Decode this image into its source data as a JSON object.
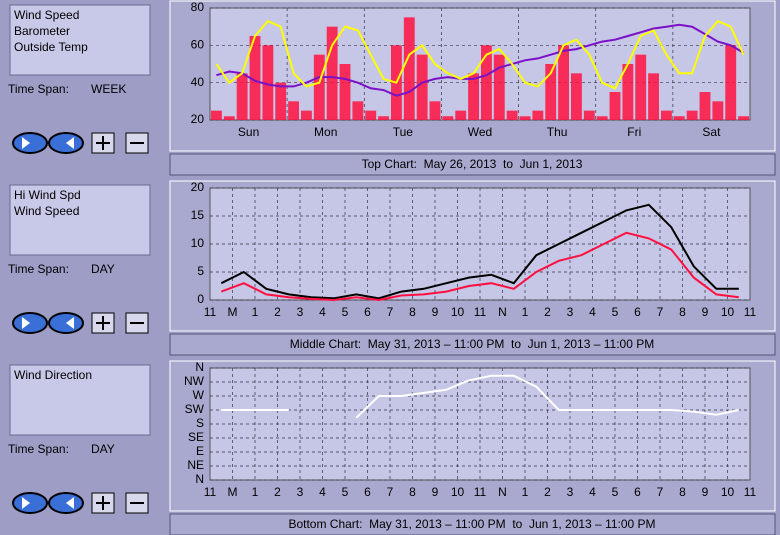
{
  "panels": [
    {
      "time_span_label": "Time Span:",
      "time_span": "WEEK",
      "caption": "Top Chart:  May 26, 2013  to  Jun 1, 2013",
      "chart": {
        "type": "line",
        "categories": [
          "Sun",
          "Mon",
          "Tue",
          "Wed",
          "Thu",
          "Fri",
          "Sat"
        ],
        "ylim": [
          20,
          80
        ],
        "yticks": [
          20,
          40,
          60,
          80
        ],
        "grid": true,
        "series": [
          {
            "name": "Wind Speed",
            "color": "#ff1040",
            "style": "bar",
            "values": [
              25,
              22,
              45,
              65,
              60,
              40,
              30,
              25,
              55,
              70,
              50,
              30,
              25,
              22,
              60,
              75,
              55,
              30,
              22,
              25,
              45,
              60,
              55,
              25,
              22,
              25,
              50,
              60,
              45,
              25,
              22,
              35,
              50,
              55,
              45,
              25,
              22,
              25,
              35,
              30,
              60,
              22
            ]
          },
          {
            "name": "Barometer",
            "color": "#7a10c8",
            "style": "line",
            "values": [
              44,
              46,
              45,
              41,
              39,
              38,
              38,
              40,
              43,
              43,
              42,
              40,
              37,
              36,
              33,
              35,
              40,
              42,
              43,
              42,
              42,
              44,
              48,
              50,
              52,
              53,
              55,
              57,
              58,
              60,
              62,
              63,
              65,
              67,
              69,
              70,
              71,
              70,
              66,
              62,
              60,
              56
            ]
          },
          {
            "name": "Outside Temp",
            "color": "#ffff00",
            "style": "line",
            "values": [
              50,
              40,
              45,
              65,
              73,
              70,
              45,
              38,
              40,
              60,
              70,
              68,
              55,
              42,
              40,
              55,
              60,
              50,
              45,
              42,
              45,
              55,
              58,
              50,
              40,
              38,
              45,
              60,
              63,
              55,
              40,
              37,
              50,
              65,
              68,
              55,
              45,
              45,
              65,
              73,
              70,
              55
            ]
          }
        ]
      }
    },
    {
      "time_span_label": "Time Span:",
      "time_span": "DAY",
      "caption": "Middle Chart:  May 31, 2013 – 11:00 PM  to  Jun 1, 2013 – 11:00 PM",
      "chart": {
        "type": "line",
        "categories": [
          "11",
          "M",
          "1",
          "2",
          "3",
          "4",
          "5",
          "6",
          "7",
          "8",
          "9",
          "10",
          "11",
          "N",
          "1",
          "2",
          "3",
          "4",
          "5",
          "6",
          "7",
          "8",
          "9",
          "10",
          "11"
        ],
        "ylim": [
          0,
          20
        ],
        "yticks": [
          0,
          5,
          10,
          15,
          20
        ],
        "grid": true,
        "series": [
          {
            "name": "Hi Wind Spd",
            "color": "#000000",
            "style": "line",
            "values": [
              3,
              5,
              2,
              1,
              0.5,
              0.3,
              1,
              0.3,
              1.5,
              2,
              3,
              4,
              4.5,
              3,
              8,
              10,
              12,
              14,
              16,
              17,
              13,
              6,
              2,
              2
            ]
          },
          {
            "name": "Wind Speed",
            "color": "#ff1040",
            "style": "line",
            "values": [
              1.5,
              3,
              1,
              0.5,
              0.2,
              0,
              0.5,
              0,
              0.8,
              1,
              1.5,
              2.5,
              3,
              2,
              5,
              7,
              8,
              10,
              12,
              11,
              9,
              4,
              1,
              0.5
            ]
          }
        ]
      }
    },
    {
      "time_span_label": "Time Span:",
      "time_span": "DAY",
      "caption": "Bottom Chart:  May 31, 2013 – 11:00 PM  to  Jun 1, 2013 – 11:00 PM",
      "chart": {
        "type": "line",
        "categories": [
          "11",
          "M",
          "1",
          "2",
          "3",
          "4",
          "5",
          "6",
          "7",
          "8",
          "9",
          "10",
          "11",
          "N",
          "1",
          "2",
          "3",
          "4",
          "5",
          "6",
          "7",
          "8",
          "9",
          "10",
          "11"
        ],
        "ylim": [
          0,
          360
        ],
        "yticks": [
          {
            "value": 360,
            "label": "N"
          },
          {
            "value": 315,
            "label": "NW"
          },
          {
            "value": 270,
            "label": "W"
          },
          {
            "value": 225,
            "label": "SW"
          },
          {
            "value": 180,
            "label": "S"
          },
          {
            "value": 135,
            "label": "SE"
          },
          {
            "value": 90,
            "label": "E"
          },
          {
            "value": 45,
            "label": "NE"
          },
          {
            "value": 0,
            "label": "N"
          }
        ],
        "grid": true,
        "series": [
          {
            "name": "Wind Direction",
            "color": "#ffffff",
            "style": "line",
            "values": [
              225,
              225,
              225,
              225,
              null,
              null,
              200,
              270,
              270,
              280,
              290,
              320,
              335,
              335,
              300,
              225,
              225,
              225,
              225,
              225,
              225,
              220,
              210,
              225
            ]
          }
        ]
      }
    }
  ]
}
